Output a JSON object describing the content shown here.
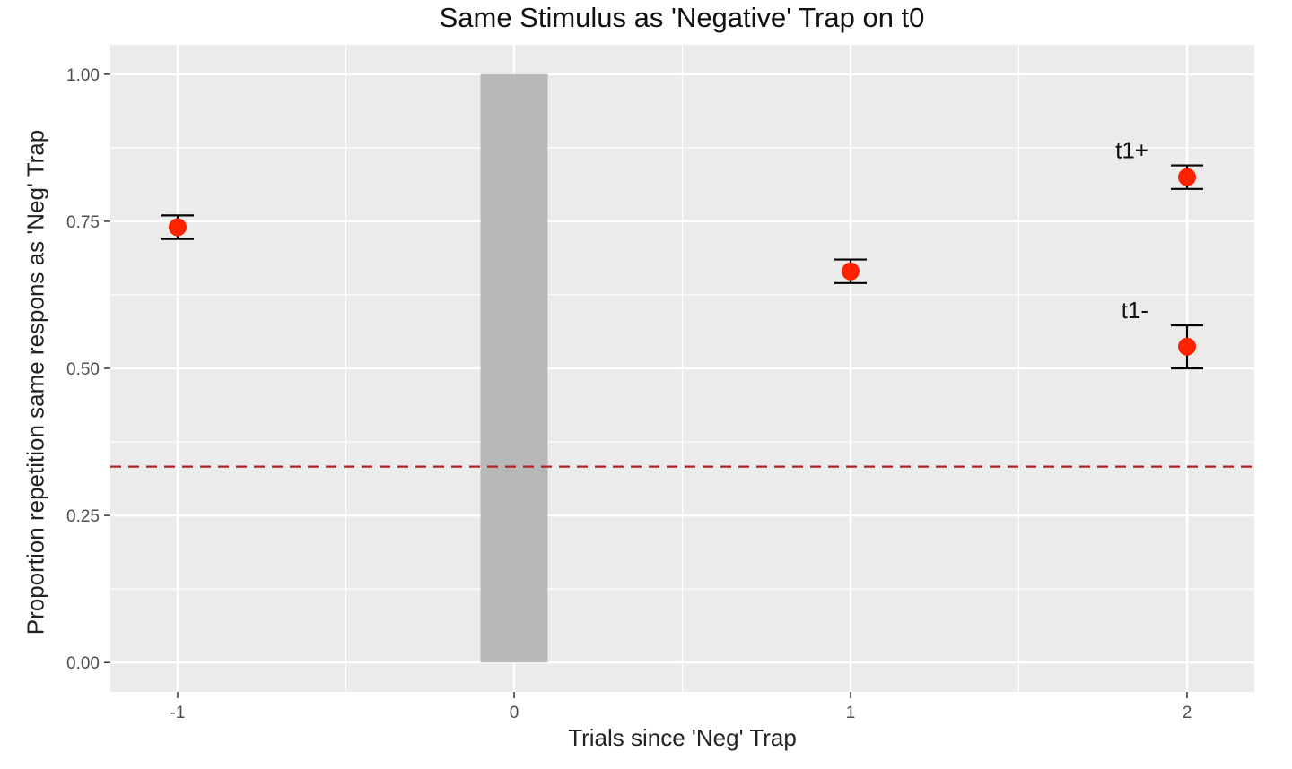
{
  "chart_data": {
    "type": "scatter",
    "title": "Same Stimulus as 'Negative' Trap on t0",
    "xlabel": "Trials since 'Neg' Trap",
    "ylabel": "Proportion repetition same respons as 'Neg' Trap",
    "xlim": [
      -1.2,
      2.2
    ],
    "ylim": [
      -0.05,
      1.05
    ],
    "x_ticks": [
      -1,
      0,
      1,
      2
    ],
    "x_tick_labels": [
      "-1",
      "0",
      "1",
      "2"
    ],
    "y_ticks": [
      0,
      0.25,
      0.5,
      0.75,
      1
    ],
    "y_tick_labels": [
      "0.00",
      "0.25",
      "0.50",
      "0.75",
      "1.00"
    ],
    "grid": true,
    "reference_line": {
      "y": 0.333,
      "style": "dashed",
      "color": "#b22222"
    },
    "shaded_region": {
      "xmin": -0.1,
      "xmax": 0.1,
      "ymin": 0,
      "ymax": 1,
      "color": "#b3b3b3"
    },
    "points": [
      {
        "x": -1,
        "y": 0.74,
        "ymin": 0.72,
        "ymax": 0.76,
        "label": ""
      },
      {
        "x": 1,
        "y": 0.665,
        "ymin": 0.645,
        "ymax": 0.685,
        "label": ""
      },
      {
        "x": 2,
        "y": 0.825,
        "ymin": 0.805,
        "ymax": 0.845,
        "label": "t1+"
      },
      {
        "x": 2,
        "y": 0.537,
        "ymin": 0.5,
        "ymax": 0.573,
        "label": "t1-"
      }
    ],
    "point_color": "#ff2200",
    "errorbar_color": "#000000",
    "panel_color": "#ebebeb",
    "grid_color": "#ffffff"
  }
}
